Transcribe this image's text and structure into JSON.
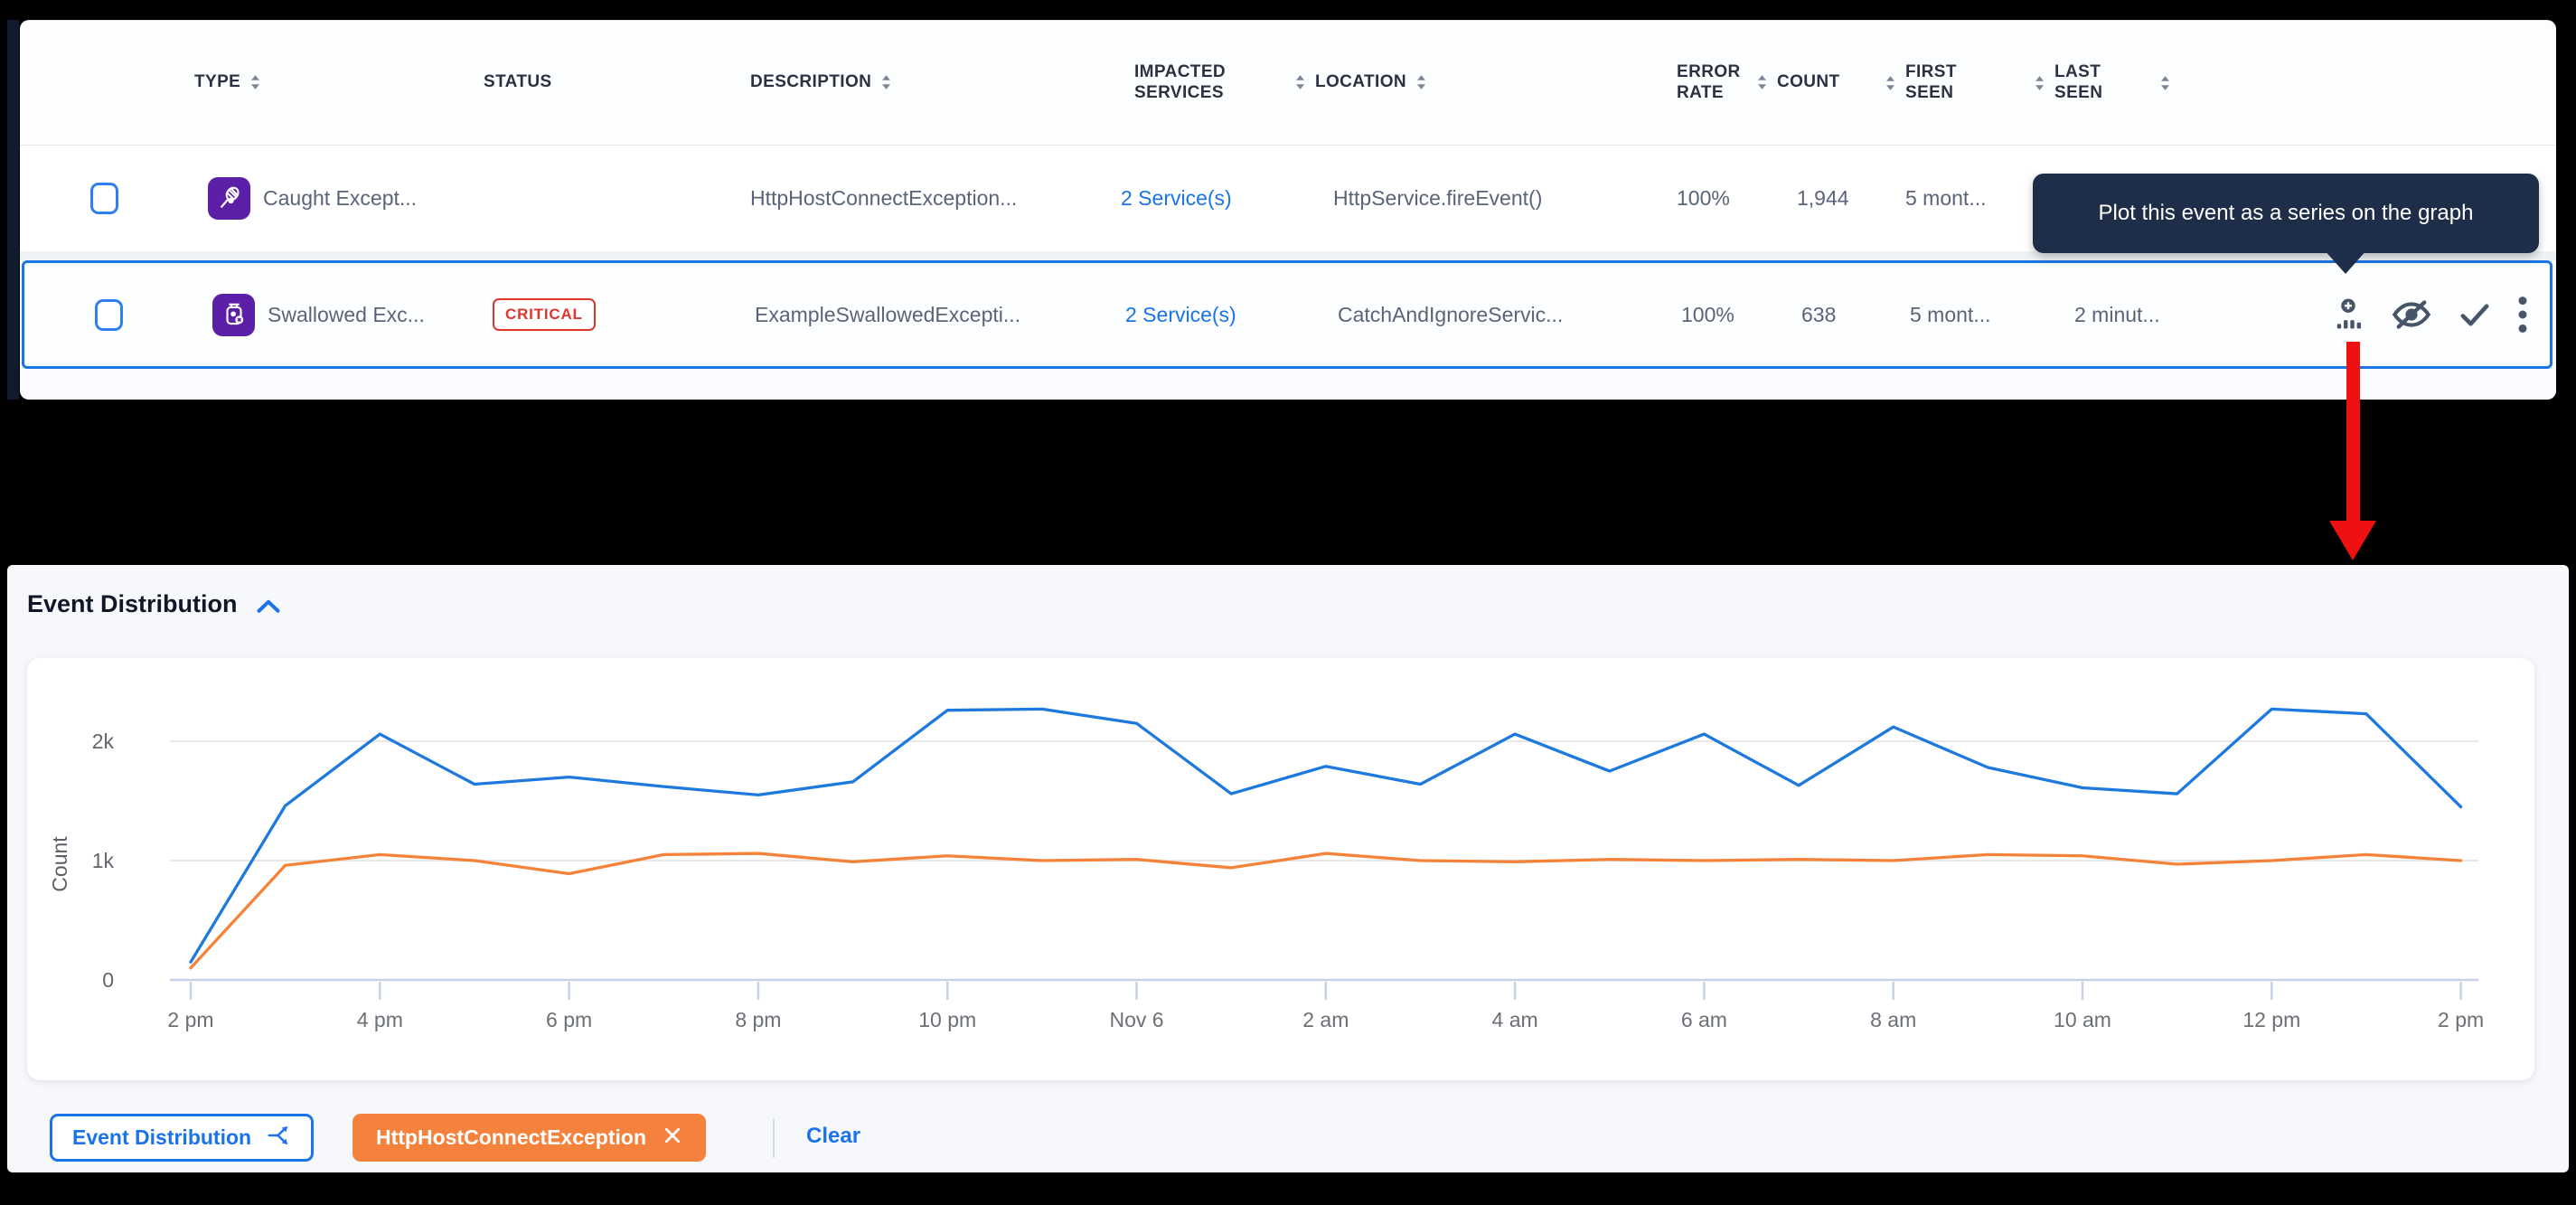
{
  "table": {
    "headers": {
      "type": "TYPE",
      "status": "STATUS",
      "description": "DESCRIPTION",
      "impacted_services": "IMPACTED SERVICES",
      "location": "LOCATION",
      "error_rate": "ERROR RATE",
      "count": "COUNT",
      "first_seen": "FIRST SEEN",
      "last_seen": "LAST SEEN"
    },
    "rows": [
      {
        "type_label": "Caught Except...",
        "type_icon": "caught-exception-icon",
        "status_badge": "",
        "description": "HttpHostConnectException...",
        "impacted_services": "2 Service(s)",
        "location": "HttpService.fireEvent()",
        "error_rate": "100%",
        "count": "1,944",
        "first_seen": "5 mont...",
        "last_seen": "",
        "selected": false
      },
      {
        "type_label": "Swallowed Exc...",
        "type_icon": "swallowed-exception-icon",
        "status_badge": "CRITICAL",
        "description": "ExampleSwallowedExcepti...",
        "impacted_services": "2 Service(s)",
        "location": "CatchAndIgnoreServic...",
        "error_rate": "100%",
        "count": "638",
        "first_seen": "5 mont...",
        "last_seen": "2 minut...",
        "selected": true
      }
    ]
  },
  "tooltip": {
    "text": "Plot this event as a series on the graph"
  },
  "chart_section": {
    "title": "Event Distribution"
  },
  "chart_data": {
    "type": "line",
    "title": "Event Distribution",
    "xlabel": "",
    "ylabel": "Count",
    "grid": true,
    "ylim": [
      0,
      2500
    ],
    "x_hours_span": 24,
    "x_tick_labels": [
      "2 pm",
      "4 pm",
      "6 pm",
      "8 pm",
      "10 pm",
      "Nov 6",
      "2 am",
      "4 am",
      "6 am",
      "8 am",
      "10 am",
      "12 pm",
      "2 pm"
    ],
    "y_ticks": [
      {
        "label": "0",
        "value": 0
      },
      {
        "label": "1k",
        "value": 1000
      },
      {
        "label": "2k",
        "value": 2000
      }
    ],
    "series": [
      {
        "name": "Event Distribution",
        "color": "#1d79dd",
        "values": [
          150,
          1460,
          2060,
          1640,
          1700,
          1620,
          1550,
          1660,
          2260,
          2270,
          2150,
          1560,
          1790,
          1640,
          2060,
          1750,
          2060,
          1630,
          2120,
          1780,
          1610,
          1560,
          2270,
          2230,
          1450
        ]
      },
      {
        "name": "HttpHostConnectException",
        "color": "#f58238",
        "values": [
          100,
          960,
          1050,
          1000,
          890,
          1050,
          1060,
          990,
          1040,
          1000,
          1010,
          940,
          1060,
          1000,
          990,
          1010,
          1000,
          1010,
          1000,
          1050,
          1040,
          970,
          1000,
          1050,
          1000
        ]
      }
    ]
  },
  "legend": {
    "series_chip_label": "Event Distribution",
    "filter_chip_label": "HttpHostConnectException",
    "clear_label": "Clear"
  },
  "colors": {
    "accent_blue": "#1a73e8",
    "series_blue": "#1d79dd",
    "series_orange": "#f58238",
    "critical_red": "#e0342c",
    "type_purple": "#5b1fa8",
    "tooltip_bg": "#1e2e49",
    "arrow_red": "#ee1111"
  }
}
